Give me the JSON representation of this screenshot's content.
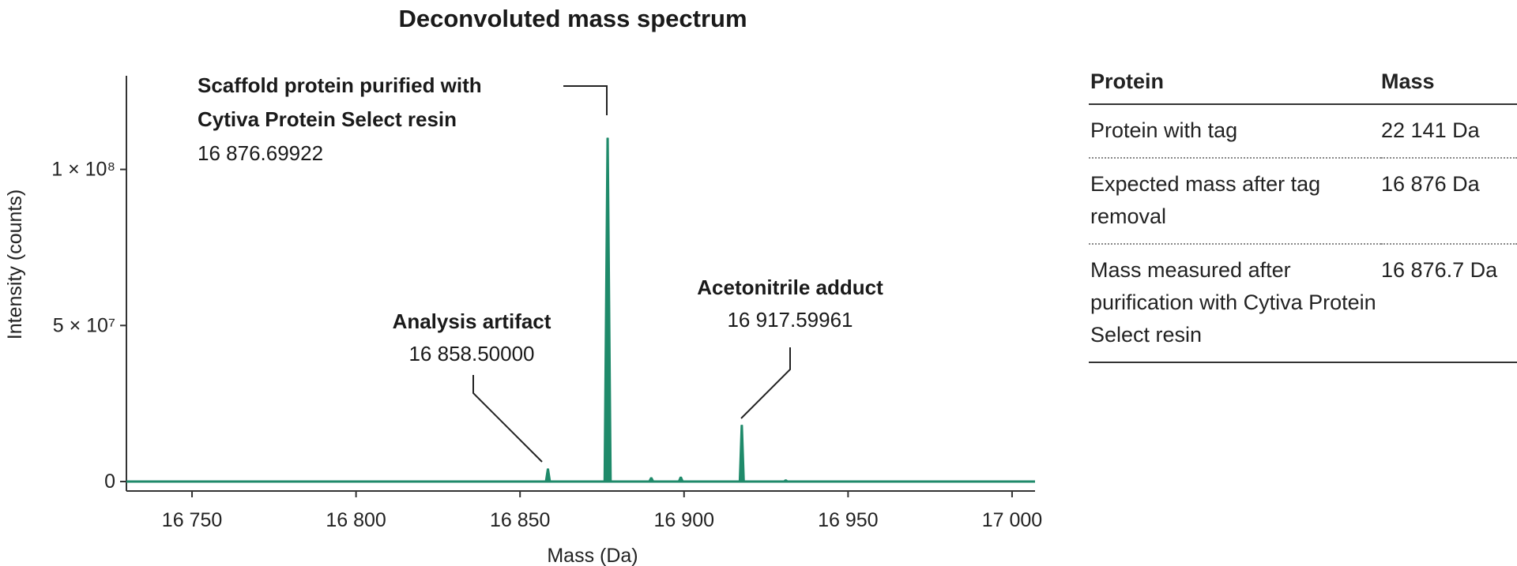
{
  "colors": {
    "series": "#1f8a6a",
    "axis": "#333333"
  },
  "chart_data": {
    "type": "line",
    "title": "Deconvoluted mass spectrum",
    "xlabel": "Mass (Da)",
    "ylabel": "Intensity (counts)",
    "xlim": [
      16730,
      17007
    ],
    "ylim": [
      0,
      130000000
    ],
    "xticks": [
      {
        "value": 16750,
        "label": "16 750"
      },
      {
        "value": 16800,
        "label": "16 800"
      },
      {
        "value": 16850,
        "label": "16 850"
      },
      {
        "value": 16900,
        "label": "16 900"
      },
      {
        "value": 16950,
        "label": "16 950"
      },
      {
        "value": 17000,
        "label": "17 000"
      }
    ],
    "yticks": [
      {
        "value": 0,
        "label": "0"
      },
      {
        "value": 50000000,
        "label": "5 × 10⁷"
      },
      {
        "value": 100000000,
        "label": "1 × 10⁸"
      }
    ],
    "peaks": [
      {
        "x": 16858.5,
        "y": 4000000
      },
      {
        "x": 16876.69922,
        "y": 110000000
      },
      {
        "x": 16890.0,
        "y": 1200000
      },
      {
        "x": 16899.0,
        "y": 1400000
      },
      {
        "x": 16917.59961,
        "y": 18000000
      },
      {
        "x": 16931.0,
        "y": 500000
      }
    ],
    "annotations": [
      {
        "title_lines": [
          "Scaffold protein purified with",
          "Cytiva Protein Select resin"
        ],
        "value": "16 876.69922",
        "peak_x": 16876.69922
      },
      {
        "title_lines": [
          "Analysis artifact"
        ],
        "value": "16 858.50000",
        "peak_x": 16858.5
      },
      {
        "title_lines": [
          "Acetonitrile adduct"
        ],
        "value": "16 917.59961",
        "peak_x": 16917.59961
      }
    ]
  },
  "table": {
    "headers": [
      "Protein",
      "Mass"
    ],
    "rows": [
      {
        "protein": "Protein with tag",
        "mass": "22 141 Da"
      },
      {
        "protein": "Expected mass after tag removal",
        "mass": "16 876 Da"
      },
      {
        "protein": "Mass measured after purification with Cytiva Protein Select resin",
        "mass": "16 876.7 Da"
      }
    ]
  }
}
